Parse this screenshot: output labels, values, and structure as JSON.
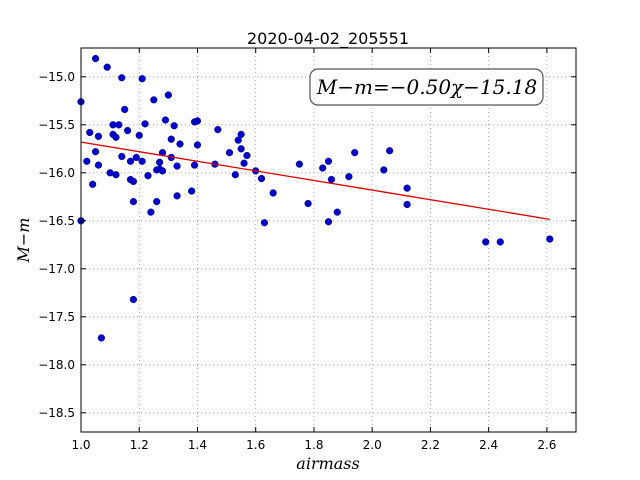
{
  "chart_data": {
    "type": "scatter",
    "title": "2020-04-02_205551",
    "xlabel": "airmass",
    "ylabel": "M−m",
    "xlim": [
      1.0,
      2.7
    ],
    "ylim": [
      -18.7,
      -14.7
    ],
    "y_inverted": false,
    "grid": true,
    "x_ticks": [
      1.0,
      1.2,
      1.4,
      1.6,
      1.8,
      2.0,
      2.2,
      2.4,
      2.6
    ],
    "x_tick_labels": [
      "1.0",
      "1.2",
      "1.4",
      "1.6",
      "1.8",
      "2.0",
      "2.2",
      "2.4",
      "2.6"
    ],
    "y_ticks": [
      -15.0,
      -15.5,
      -16.0,
      -16.5,
      -17.0,
      -17.5,
      -18.0,
      -18.5
    ],
    "y_tick_labels": [
      "−15.0",
      "−15.5",
      "−16.0",
      "−16.5",
      "−17.0",
      "−17.5",
      "−18.0",
      "−18.5"
    ],
    "annotation": "M−m=−0.50χ−15.18",
    "colors": {
      "points": "#0000cc",
      "fit": "#dd0000",
      "grid": "#999999"
    },
    "series": [
      {
        "type": "scatter",
        "x": [
          1.0,
          1.0,
          1.02,
          1.03,
          1.04,
          1.05,
          1.05,
          1.06,
          1.06,
          1.07,
          1.09,
          1.1,
          1.11,
          1.11,
          1.12,
          1.12,
          1.13,
          1.14,
          1.14,
          1.15,
          1.16,
          1.17,
          1.17,
          1.18,
          1.18,
          1.18,
          1.19,
          1.2,
          1.21,
          1.21,
          1.22,
          1.23,
          1.24,
          1.25,
          1.26,
          1.26,
          1.27,
          1.27,
          1.28,
          1.28,
          1.29,
          1.3,
          1.31,
          1.31,
          1.32,
          1.33,
          1.33,
          1.34,
          1.38,
          1.39,
          1.39,
          1.4,
          1.4,
          1.46,
          1.47,
          1.51,
          1.53,
          1.54,
          1.55,
          1.55,
          1.56,
          1.57,
          1.6,
          1.62,
          1.63,
          1.66,
          1.75,
          1.78,
          1.83,
          1.85,
          1.85,
          1.86,
          1.88,
          1.92,
          1.94,
          2.04,
          2.06,
          2.12,
          2.12,
          2.39,
          2.44,
          2.61
        ],
        "y": [
          -15.26,
          -16.5,
          -15.88,
          -15.58,
          -16.12,
          -15.78,
          -14.81,
          -15.62,
          -15.92,
          -17.72,
          -14.9,
          -16.0,
          -15.6,
          -15.5,
          -16.02,
          -15.63,
          -15.5,
          -15.83,
          -15.01,
          -15.34,
          -15.56,
          -15.88,
          -16.07,
          -16.09,
          -16.3,
          -17.32,
          -15.84,
          -15.61,
          -15.02,
          -15.88,
          -15.49,
          -16.03,
          -16.41,
          -15.24,
          -15.97,
          -16.3,
          -15.89,
          -15.96,
          -15.98,
          -15.79,
          -15.45,
          -15.19,
          -15.84,
          -15.65,
          -15.51,
          -15.93,
          -16.24,
          -15.7,
          -16.19,
          -15.47,
          -15.92,
          -15.71,
          -15.46,
          -15.91,
          -15.55,
          -15.79,
          -16.02,
          -15.66,
          -15.6,
          -15.75,
          -15.9,
          -15.82,
          -15.98,
          -16.06,
          -16.52,
          -16.21,
          -15.91,
          -16.32,
          -15.95,
          -15.88,
          -16.51,
          -16.07,
          -16.41,
          -16.04,
          -15.79,
          -15.97,
          -15.77,
          -16.33,
          -16.16,
          -16.72,
          -16.72,
          -16.69
        ]
      },
      {
        "type": "line",
        "x": [
          1.0,
          2.61
        ],
        "y": [
          -15.68,
          -16.485
        ]
      }
    ]
  }
}
